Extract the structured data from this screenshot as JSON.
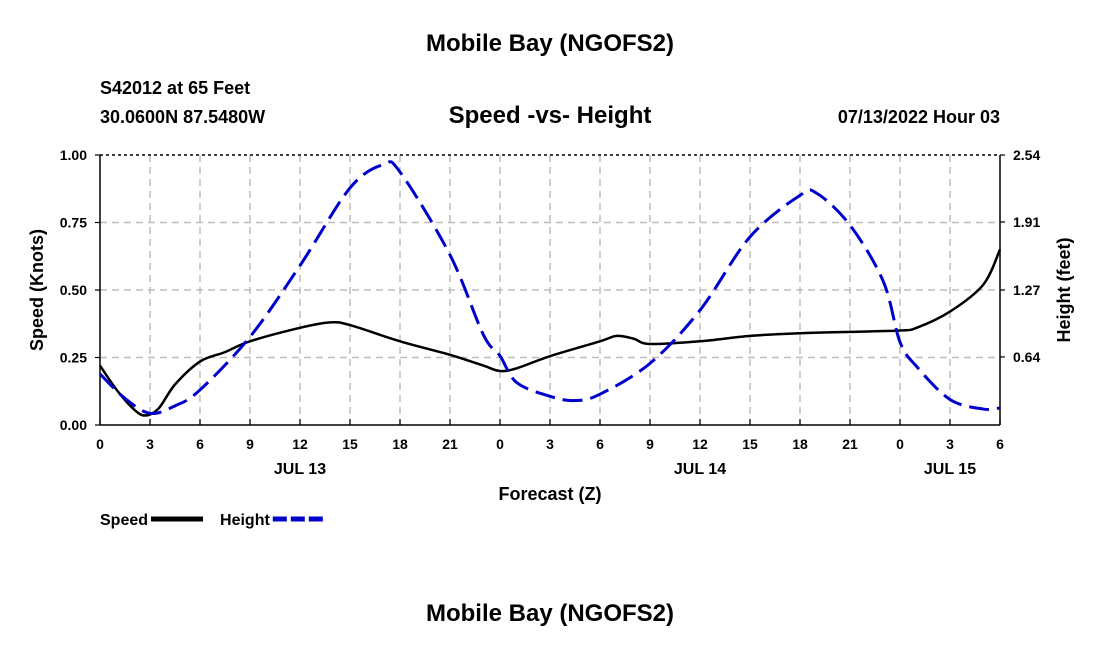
{
  "header": {
    "title": "Mobile Bay (NGOFS2)",
    "station": "S42012 at 65 Feet",
    "coords": "30.0600N  87.5480W",
    "timestamp": "07/13/2022 Hour 03"
  },
  "footer": {
    "title": "Mobile Bay (NGOFS2)"
  },
  "chart_data": {
    "type": "line",
    "title": "Speed -vs- Height",
    "xlabel": "Forecast (Z)",
    "ylabel_left": "Speed (Knots)",
    "ylabel_right": "Height (feet)",
    "x_unit": "hours from 00Z Jul 13",
    "xlim": [
      0,
      54
    ],
    "ylim_left": [
      0,
      1.0
    ],
    "ylim_right": [
      0,
      2.54
    ],
    "x_ticks": [
      0,
      3,
      6,
      9,
      12,
      15,
      18,
      21,
      24,
      27,
      30,
      33,
      36,
      39,
      42,
      45,
      48,
      51,
      54
    ],
    "x_tick_labels": [
      "0",
      "3",
      "6",
      "9",
      "12",
      "15",
      "18",
      "21",
      "0",
      "3",
      "6",
      "9",
      "12",
      "15",
      "18",
      "21",
      "0",
      "3",
      "6"
    ],
    "date_labels": [
      {
        "x": 12,
        "label": "JUL 13"
      },
      {
        "x": 36,
        "label": "JUL 14"
      },
      {
        "x": 51,
        "label": "JUL 15"
      }
    ],
    "y_left_ticks": [
      0,
      0.25,
      0.5,
      0.75,
      1.0
    ],
    "y_left_tick_labels": [
      "0.00",
      "0.25",
      "0.50",
      "0.75",
      "1.00"
    ],
    "y_right_ticks": [
      0.64,
      1.27,
      1.91,
      2.54
    ],
    "y_right_tick_labels": [
      "0.64",
      "1.27",
      "1.91",
      "2.54"
    ],
    "grid": true,
    "legend_position": "bottom-left",
    "series": [
      {
        "name": "Speed",
        "axis": "left",
        "color": "#000000",
        "dash": "solid",
        "points": [
          [
            0,
            0.22
          ],
          [
            1,
            0.13
          ],
          [
            2,
            0.06
          ],
          [
            2.7,
            0.035
          ],
          [
            3.5,
            0.06
          ],
          [
            4.5,
            0.15
          ],
          [
            6,
            0.235
          ],
          [
            7.5,
            0.27
          ],
          [
            9,
            0.31
          ],
          [
            12,
            0.36
          ],
          [
            13.8,
            0.38
          ],
          [
            15,
            0.37
          ],
          [
            18,
            0.31
          ],
          [
            21,
            0.26
          ],
          [
            23,
            0.22
          ],
          [
            24,
            0.2
          ],
          [
            25,
            0.21
          ],
          [
            27,
            0.255
          ],
          [
            30,
            0.31
          ],
          [
            31,
            0.33
          ],
          [
            32,
            0.32
          ],
          [
            33,
            0.3
          ],
          [
            36,
            0.31
          ],
          [
            39,
            0.33
          ],
          [
            42,
            0.34
          ],
          [
            45,
            0.345
          ],
          [
            48,
            0.35
          ],
          [
            49,
            0.36
          ],
          [
            51,
            0.42
          ],
          [
            53,
            0.52
          ],
          [
            54,
            0.65
          ]
        ]
      },
      {
        "name": "Height",
        "axis": "right",
        "color": "#0000cc",
        "dash": "dashed",
        "points": [
          [
            0,
            0.48
          ],
          [
            1.5,
            0.25
          ],
          [
            3,
            0.11
          ],
          [
            4.5,
            0.18
          ],
          [
            6,
            0.33
          ],
          [
            9,
            0.83
          ],
          [
            12,
            1.5
          ],
          [
            15,
            2.23
          ],
          [
            17,
            2.45
          ],
          [
            18,
            2.38
          ],
          [
            21,
            1.6
          ],
          [
            23,
            0.85
          ],
          [
            24,
            0.65
          ],
          [
            25,
            0.4
          ],
          [
            27,
            0.27
          ],
          [
            28.5,
            0.23
          ],
          [
            30,
            0.29
          ],
          [
            33,
            0.58
          ],
          [
            36,
            1.08
          ],
          [
            39,
            1.77
          ],
          [
            42,
            2.16
          ],
          [
            43,
            2.18
          ],
          [
            45,
            1.88
          ],
          [
            47,
            1.35
          ],
          [
            48,
            0.78
          ],
          [
            49,
            0.55
          ],
          [
            51,
            0.24
          ],
          [
            53,
            0.15
          ],
          [
            54,
            0.16
          ]
        ]
      }
    ]
  }
}
